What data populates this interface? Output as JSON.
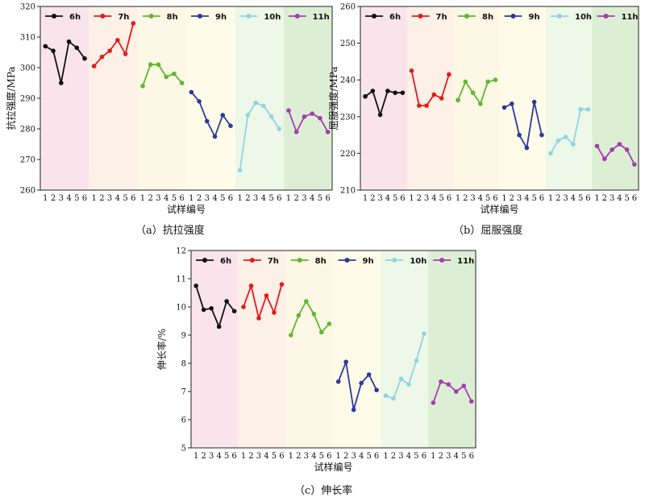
{
  "colors": {
    "series": [
      "#111111",
      "#e41a1c",
      "#5cb82f",
      "#2b3a9c",
      "#8fd3e6",
      "#a43cb0"
    ],
    "bands": [
      "#f9e4ec",
      "#fdf0e6",
      "#fdf7e6",
      "#fefce8",
      "#eef8e8",
      "#dcefd4"
    ]
  },
  "chart_data": [
    {
      "type": "line",
      "caption": "（a）抗拉强度",
      "ylabel": "抗拉强度/MPa",
      "xlabel": "试样编号",
      "ylim": [
        260,
        320
      ],
      "yticks": [
        260,
        270,
        280,
        290,
        300,
        310,
        320
      ],
      "x": [
        "1",
        "2",
        "3",
        "4",
        "5",
        "6"
      ],
      "grid": false,
      "legend": "top",
      "series": [
        {
          "name": "6h",
          "values": [
            307,
            305.5,
            295,
            308.5,
            306.5,
            303
          ]
        },
        {
          "name": "7h",
          "values": [
            300.5,
            303.5,
            305.5,
            309,
            304.5,
            314.5
          ]
        },
        {
          "name": "8h",
          "values": [
            294,
            301,
            301,
            297,
            298,
            295
          ]
        },
        {
          "name": "9h",
          "values": [
            292,
            289,
            282.5,
            277.5,
            284.5,
            281
          ]
        },
        {
          "name": "10h",
          "values": [
            266.5,
            284.5,
            288.5,
            287.5,
            284,
            280
          ]
        },
        {
          "name": "11h",
          "values": [
            286,
            279,
            284,
            285,
            283.5,
            279
          ]
        }
      ]
    },
    {
      "type": "line",
      "caption": "（b）屈服强度",
      "ylabel": "屈服强度/MPa",
      "xlabel": "试样编号",
      "ylim": [
        210,
        260
      ],
      "yticks": [
        210,
        220,
        230,
        240,
        250,
        260
      ],
      "x": [
        "1",
        "2",
        "3",
        "4",
        "5",
        "6"
      ],
      "grid": false,
      "legend": "top",
      "series": [
        {
          "name": "6h",
          "values": [
            235.5,
            237,
            230.5,
            237,
            236.5,
            236.5
          ]
        },
        {
          "name": "7h",
          "values": [
            242.5,
            233,
            233,
            236,
            235,
            241.5
          ]
        },
        {
          "name": "8h",
          "values": [
            234.5,
            239.5,
            236.5,
            233.5,
            239.5,
            240
          ]
        },
        {
          "name": "9h",
          "values": [
            232.5,
            233.5,
            225,
            221.5,
            234,
            225
          ]
        },
        {
          "name": "10h",
          "values": [
            220,
            223.5,
            224.5,
            222.5,
            232,
            232
          ]
        },
        {
          "name": "11h",
          "values": [
            222,
            218.5,
            221,
            222.5,
            221,
            217
          ]
        }
      ]
    },
    {
      "type": "line",
      "caption": "（c）伸长率",
      "ylabel": "伸长率/%",
      "xlabel": "试样编号",
      "ylim": [
        5,
        12
      ],
      "yticks": [
        5,
        6,
        7,
        8,
        9,
        10,
        11,
        12
      ],
      "x": [
        "1",
        "2",
        "3",
        "4",
        "5",
        "6"
      ],
      "grid": false,
      "legend": "top",
      "series": [
        {
          "name": "6h",
          "values": [
            10.75,
            9.9,
            9.95,
            9.3,
            10.2,
            9.85
          ]
        },
        {
          "name": "7h",
          "values": [
            10.0,
            10.75,
            9.6,
            10.4,
            9.8,
            10.8
          ]
        },
        {
          "name": "8h",
          "values": [
            9.0,
            9.7,
            10.2,
            9.75,
            9.1,
            9.4
          ]
        },
        {
          "name": "9h",
          "values": [
            7.35,
            8.05,
            6.35,
            7.3,
            7.6,
            7.05
          ]
        },
        {
          "name": "10h",
          "values": [
            6.85,
            6.75,
            7.45,
            7.25,
            8.1,
            9.05
          ]
        },
        {
          "name": "11h",
          "values": [
            6.6,
            7.35,
            7.25,
            7.0,
            7.2,
            6.65
          ]
        }
      ]
    }
  ]
}
